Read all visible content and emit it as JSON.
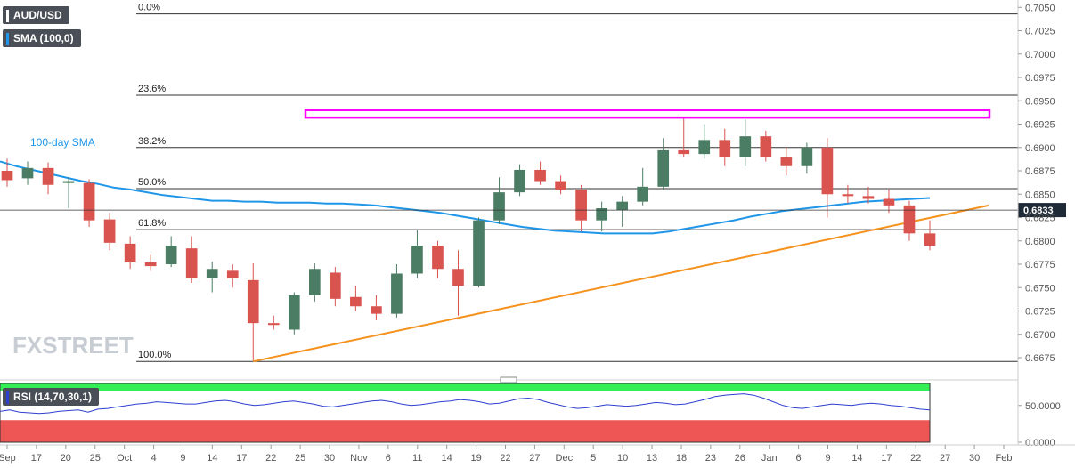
{
  "header": {
    "symbol": "AUD/USD",
    "sma_tag": "SMA (100,0)",
    "rsi_tag": "RSI (14,70,30,1)",
    "sma_label": "100-day SMA",
    "watermark": "FXSTREET"
  },
  "colors": {
    "bull": "#4b7d64",
    "bear": "#d9534f",
    "sma": "#1f96e8",
    "trendline": "#f5921e",
    "resistance_box": "#ff00ff",
    "rsi_line": "#2d3fd0",
    "rsi_overbought": "#33ee55",
    "rsi_oversold": "#ee5555"
  },
  "chart_data": {
    "type": "candlestick",
    "y_axis": {
      "range": [
        0.6655,
        0.7055
      ],
      "ticks": [
        "0.7050",
        "0.7025",
        "0.7000",
        "0.6975",
        "0.6950",
        "0.6925",
        "0.6900",
        "0.6875",
        "0.6850",
        "0.6825",
        "0.6800",
        "0.6775",
        "0.6750",
        "0.6725",
        "0.6700",
        "0.6675"
      ],
      "current_price": "0.6833"
    },
    "x_axis": {
      "ticks": [
        "Sep",
        "17",
        "20",
        "25",
        "Oct",
        "4",
        "9",
        "14",
        "17",
        "22",
        "25",
        "30",
        "Nov",
        "6",
        "11",
        "14",
        "19",
        "22",
        "27",
        "Dec",
        "5",
        "10",
        "13",
        "18",
        "23",
        "26",
        "Jan",
        "6",
        "9",
        "14",
        "17",
        "22",
        "27",
        "30",
        "Feb"
      ]
    },
    "fibonacci": [
      {
        "label": "0.0%",
        "value": 0.7043
      },
      {
        "label": "23.6%",
        "value": 0.6956
      },
      {
        "label": "38.2%",
        "value": 0.69
      },
      {
        "label": "50.0%",
        "value": 0.6856
      },
      {
        "label": "61.8%",
        "value": 0.6812
      },
      {
        "label": "100.0%",
        "value": 0.6671
      }
    ],
    "resistance_zone": [
      0.6932,
      0.694
    ],
    "trendline": {
      "start": 0.6671,
      "end": 0.6838
    },
    "sma_100": [
      0.6885,
      0.688,
      0.6876,
      0.6872,
      0.6868,
      0.6864,
      0.6861,
      0.6857,
      0.6855,
      0.6852,
      0.6849,
      0.6847,
      0.6845,
      0.6843,
      0.6843,
      0.6842,
      0.6842,
      0.6841,
      0.6841,
      0.6841,
      0.684,
      0.684,
      0.6839,
      0.6838,
      0.6836,
      0.6834,
      0.6832,
      0.683,
      0.6827,
      0.6824,
      0.6821,
      0.6818,
      0.6815,
      0.6813,
      0.6811,
      0.681,
      0.6809,
      0.6808,
      0.6808,
      0.6808,
      0.6808,
      0.681,
      0.6813,
      0.6816,
      0.6819,
      0.6822,
      0.6826,
      0.6829,
      0.6832,
      0.6834,
      0.6836,
      0.6838,
      0.684,
      0.6842,
      0.6843,
      0.6844,
      0.6845,
      0.6846
    ],
    "candles": [
      {
        "o": 0.6875,
        "h": 0.6888,
        "l": 0.6858,
        "c": 0.6865
      },
      {
        "o": 0.6867,
        "h": 0.6885,
        "l": 0.686,
        "c": 0.6878
      },
      {
        "o": 0.6878,
        "h": 0.6884,
        "l": 0.685,
        "c": 0.686
      },
      {
        "o": 0.6862,
        "h": 0.6868,
        "l": 0.6835,
        "c": 0.6864
      },
      {
        "o": 0.6862,
        "h": 0.6866,
        "l": 0.6815,
        "c": 0.6822
      },
      {
        "o": 0.6823,
        "h": 0.683,
        "l": 0.679,
        "c": 0.6798
      },
      {
        "o": 0.6797,
        "h": 0.6805,
        "l": 0.677,
        "c": 0.6777
      },
      {
        "o": 0.6777,
        "h": 0.6785,
        "l": 0.6768,
        "c": 0.6773
      },
      {
        "o": 0.6775,
        "h": 0.6805,
        "l": 0.6772,
        "c": 0.6795
      },
      {
        "o": 0.6792,
        "h": 0.6805,
        "l": 0.6755,
        "c": 0.676
      },
      {
        "o": 0.676,
        "h": 0.6778,
        "l": 0.6745,
        "c": 0.677
      },
      {
        "o": 0.6768,
        "h": 0.6775,
        "l": 0.675,
        "c": 0.676
      },
      {
        "o": 0.6758,
        "h": 0.6776,
        "l": 0.6672,
        "c": 0.6712
      },
      {
        "o": 0.6712,
        "h": 0.672,
        "l": 0.6705,
        "c": 0.671
      },
      {
        "o": 0.6705,
        "h": 0.6745,
        "l": 0.67,
        "c": 0.6742
      },
      {
        "o": 0.6742,
        "h": 0.6776,
        "l": 0.6735,
        "c": 0.677
      },
      {
        "o": 0.6766,
        "h": 0.6772,
        "l": 0.673,
        "c": 0.6738
      },
      {
        "o": 0.674,
        "h": 0.6752,
        "l": 0.6725,
        "c": 0.673
      },
      {
        "o": 0.673,
        "h": 0.6742,
        "l": 0.6715,
        "c": 0.6722
      },
      {
        "o": 0.6722,
        "h": 0.6775,
        "l": 0.6718,
        "c": 0.6765
      },
      {
        "o": 0.6765,
        "h": 0.6812,
        "l": 0.676,
        "c": 0.6795
      },
      {
        "o": 0.6795,
        "h": 0.68,
        "l": 0.676,
        "c": 0.677
      },
      {
        "o": 0.677,
        "h": 0.679,
        "l": 0.672,
        "c": 0.6752
      },
      {
        "o": 0.6752,
        "h": 0.6825,
        "l": 0.675,
        "c": 0.6822
      },
      {
        "o": 0.6822,
        "h": 0.6868,
        "l": 0.6818,
        "c": 0.6852
      },
      {
        "o": 0.6852,
        "h": 0.6882,
        "l": 0.6848,
        "c": 0.6876
      },
      {
        "o": 0.6876,
        "h": 0.6885,
        "l": 0.686,
        "c": 0.6864
      },
      {
        "o": 0.6864,
        "h": 0.687,
        "l": 0.685,
        "c": 0.6855
      },
      {
        "o": 0.6855,
        "h": 0.686,
        "l": 0.681,
        "c": 0.6822
      },
      {
        "o": 0.6822,
        "h": 0.6842,
        "l": 0.681,
        "c": 0.6835
      },
      {
        "o": 0.6833,
        "h": 0.6848,
        "l": 0.6815,
        "c": 0.6842
      },
      {
        "o": 0.6842,
        "h": 0.6878,
        "l": 0.6838,
        "c": 0.6858
      },
      {
        "o": 0.6858,
        "h": 0.691,
        "l": 0.6855,
        "c": 0.6897
      },
      {
        "o": 0.6897,
        "h": 0.6932,
        "l": 0.689,
        "c": 0.6893
      },
      {
        "o": 0.6893,
        "h": 0.6925,
        "l": 0.6888,
        "c": 0.6908
      },
      {
        "o": 0.6908,
        "h": 0.692,
        "l": 0.688,
        "c": 0.689
      },
      {
        "o": 0.689,
        "h": 0.693,
        "l": 0.688,
        "c": 0.6912
      },
      {
        "o": 0.6912,
        "h": 0.6918,
        "l": 0.6885,
        "c": 0.689
      },
      {
        "o": 0.689,
        "h": 0.69,
        "l": 0.687,
        "c": 0.688
      },
      {
        "o": 0.688,
        "h": 0.6905,
        "l": 0.6872,
        "c": 0.69
      },
      {
        "o": 0.69,
        "h": 0.691,
        "l": 0.6825,
        "c": 0.685
      },
      {
        "o": 0.685,
        "h": 0.686,
        "l": 0.684,
        "c": 0.6848
      },
      {
        "o": 0.6848,
        "h": 0.6858,
        "l": 0.684,
        "c": 0.6845
      },
      {
        "o": 0.6845,
        "h": 0.6855,
        "l": 0.683,
        "c": 0.6838
      },
      {
        "o": 0.6838,
        "h": 0.6843,
        "l": 0.68,
        "c": 0.6808
      },
      {
        "o": 0.6808,
        "h": 0.6822,
        "l": 0.679,
        "c": 0.6795
      }
    ],
    "rsi": {
      "range": [
        0,
        80
      ],
      "ticks": [
        "50.0000",
        "0.0000"
      ],
      "overbought": 70,
      "oversold": 30,
      "values": [
        42,
        44,
        41,
        40,
        39,
        40,
        42,
        43,
        44,
        41,
        45,
        46,
        48,
        50,
        52,
        53,
        55,
        54,
        53,
        52,
        52,
        54,
        56,
        57,
        55,
        52,
        50,
        51,
        53,
        55,
        56,
        54,
        52,
        49,
        48,
        50,
        52,
        54,
        56,
        57,
        55,
        52,
        50,
        51,
        53,
        55,
        56,
        58,
        57,
        55,
        52,
        53,
        56,
        59,
        60,
        58,
        54,
        51,
        48,
        46,
        47,
        49,
        51,
        50,
        49,
        50,
        52,
        54,
        53,
        51,
        52,
        55,
        58,
        62,
        64,
        65,
        66,
        64,
        60,
        55,
        50,
        47,
        46,
        48,
        50,
        52,
        51,
        50,
        52,
        53,
        52,
        50,
        49,
        47,
        45,
        44
      ]
    }
  }
}
